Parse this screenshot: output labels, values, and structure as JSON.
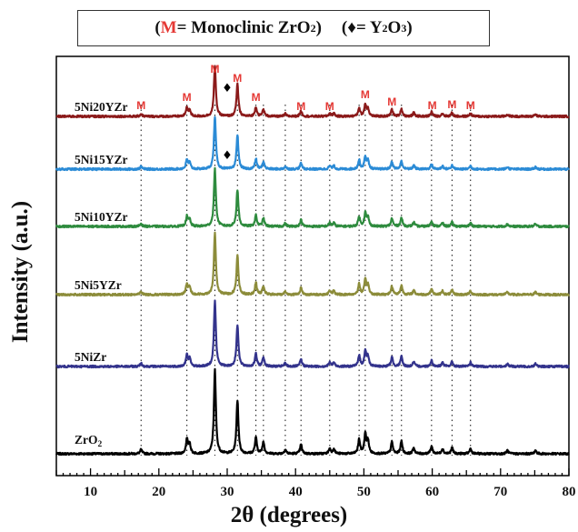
{
  "legend": {
    "open_paren": "(",
    "m_symbol": "M",
    "m_text": " = Monoclinic ZrO",
    "m_sub": "2",
    "m_close": ")",
    "open_paren2": "(",
    "y_symbol": "♦",
    "y_text": " = Y",
    "y_sub1": "2",
    "y_o": "O",
    "y_sub2": "3",
    "y_close": ")"
  },
  "colors": {
    "M_marker": "#e53935",
    "ZrO2": "#000000",
    "5NiZr": "#33338c",
    "5Ni5YZr": "#8c8c3a",
    "5Ni10YZr": "#2e8b3e",
    "5Ni15YZr": "#2b8bd6",
    "5Ni20YZr": "#8b1a1a"
  },
  "chart_data": {
    "type": "line",
    "title": "",
    "xlabel": "2θ (degrees)",
    "ylabel": "Intensity (a.u.)",
    "xlim": [
      5,
      80
    ],
    "xticks": [
      10,
      20,
      30,
      40,
      50,
      60,
      70,
      80
    ],
    "x_tick_labels": [
      "10",
      "20",
      "30",
      "40",
      "50",
      "60",
      "70",
      "80"
    ],
    "stacked_offset": true,
    "grid": false,
    "reference_lines_x": [
      17.4,
      24.1,
      28.2,
      31.5,
      34.2,
      35.3,
      38.5,
      40.8,
      45.0,
      49.3,
      50.2,
      54.1,
      55.5,
      59.9,
      62.9,
      65.6
    ],
    "peaks": [
      {
        "x": 17.4,
        "h": 0.05
      },
      {
        "x": 24.1,
        "h": 0.17
      },
      {
        "x": 24.5,
        "h": 0.12
      },
      {
        "x": 28.2,
        "h": 1.0
      },
      {
        "x": 31.5,
        "h": 0.64
      },
      {
        "x": 34.2,
        "h": 0.19
      },
      {
        "x": 35.3,
        "h": 0.14
      },
      {
        "x": 38.5,
        "h": 0.05
      },
      {
        "x": 40.8,
        "h": 0.11
      },
      {
        "x": 45.0,
        "h": 0.06
      },
      {
        "x": 45.6,
        "h": 0.06
      },
      {
        "x": 49.3,
        "h": 0.17
      },
      {
        "x": 50.2,
        "h": 0.23
      },
      {
        "x": 50.6,
        "h": 0.15
      },
      {
        "x": 54.1,
        "h": 0.14
      },
      {
        "x": 55.5,
        "h": 0.15
      },
      {
        "x": 57.3,
        "h": 0.07
      },
      {
        "x": 59.9,
        "h": 0.09
      },
      {
        "x": 61.5,
        "h": 0.06
      },
      {
        "x": 62.9,
        "h": 0.07
      },
      {
        "x": 65.6,
        "h": 0.06
      },
      {
        "x": 71.0,
        "h": 0.04
      },
      {
        "x": 75.1,
        "h": 0.04
      }
    ],
    "series": [
      {
        "name": "ZrO",
        "name_sub": "2",
        "color": "#000000"
      },
      {
        "name": "5NiZr",
        "color": "#33338c"
      },
      {
        "name": "5Ni5YZr",
        "color": "#8c8c3a"
      },
      {
        "name": "5Ni10YZr",
        "color": "#2e8b3e"
      },
      {
        "name": "5Ni15YZr",
        "color": "#2b8bd6"
      },
      {
        "name": "5Ni20YZr",
        "color": "#8b1a1a"
      }
    ],
    "annotations": [
      {
        "text": "M",
        "x": 17.4
      },
      {
        "text": "M",
        "x": 24.1
      },
      {
        "text": "M",
        "x": 28.2
      },
      {
        "text": "M",
        "x": 31.5
      },
      {
        "text": "M",
        "x": 34.2
      },
      {
        "text": "M",
        "x": 40.8
      },
      {
        "text": "M",
        "x": 45.0
      },
      {
        "text": "M",
        "x": 50.2
      },
      {
        "text": "M",
        "x": 54.1
      },
      {
        "text": "M",
        "x": 60.0
      },
      {
        "text": "M",
        "x": 62.9
      },
      {
        "text": "M",
        "x": 65.6
      },
      {
        "text": "♦",
        "x": 30.0,
        "series": "5Ni20YZr"
      },
      {
        "text": "♦",
        "x": 30.0,
        "series": "5Ni15YZr"
      }
    ]
  }
}
